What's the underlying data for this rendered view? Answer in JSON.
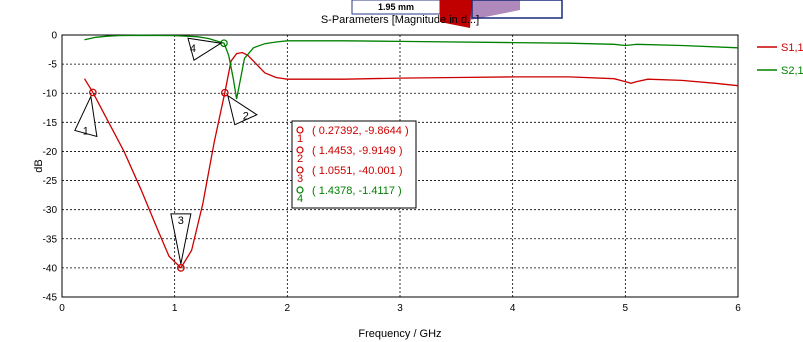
{
  "chart_data": {
    "type": "line",
    "title": "S-Parameters [Magnitude in d...]",
    "xlabel": "Frequency / GHz",
    "ylabel": "dB",
    "xlim": [
      0,
      6
    ],
    "ylim": [
      -45,
      0
    ],
    "xticks": [
      "0",
      "1",
      "2",
      "3",
      "4",
      "5",
      "6"
    ],
    "yticks": [
      "0",
      "-5",
      "-10",
      "-15",
      "-20",
      "-25",
      "-30",
      "-35",
      "-40",
      "-45"
    ],
    "grid": true,
    "legend_position": "right",
    "inset_label": "1.95 mm",
    "series": [
      {
        "name": "S1,1",
        "color": "#cc0000",
        "x": [
          0.2,
          0.27392,
          0.4,
          0.55,
          0.7,
          0.85,
          0.95,
          1.0551,
          1.15,
          1.25,
          1.35,
          1.4453,
          1.5,
          1.55,
          1.6,
          1.65,
          1.7,
          1.8,
          1.9,
          2.0,
          2.5,
          3.0,
          3.5,
          4.0,
          4.5,
          4.9,
          5.0,
          5.05,
          5.1,
          5.2,
          5.5,
          5.8,
          6.0
        ],
        "y": [
          -7.5,
          -9.8644,
          -14.5,
          -20,
          -26.5,
          -33.5,
          -38,
          -40.001,
          -37,
          -29,
          -18.5,
          -9.9149,
          -4.5,
          -3.2,
          -3.0,
          -3.5,
          -4.5,
          -6.5,
          -7.3,
          -7.6,
          -7.6,
          -7.4,
          -7.3,
          -7.2,
          -7.2,
          -7.5,
          -8.0,
          -8.3,
          -8.0,
          -7.6,
          -7.8,
          -8.3,
          -8.7
        ]
      },
      {
        "name": "S2,1",
        "color": "#008000",
        "x": [
          0.2,
          0.3,
          0.4,
          0.5,
          0.7,
          1.0,
          1.2,
          1.3,
          1.4378,
          1.48,
          1.52,
          1.55,
          1.58,
          1.62,
          1.7,
          1.8,
          1.9,
          2.0,
          2.5,
          3.0,
          4.0,
          4.5,
          4.9,
          5.0,
          5.1,
          5.5,
          6.0
        ],
        "y": [
          -0.8,
          -0.4,
          -0.2,
          -0.1,
          -0.05,
          -0.1,
          -0.3,
          -0.6,
          -1.4117,
          -3.5,
          -7.5,
          -11,
          -8,
          -4,
          -2.2,
          -1.5,
          -1.2,
          -1.0,
          -1.0,
          -1.1,
          -1.3,
          -1.4,
          -1.6,
          -1.8,
          -1.6,
          -1.8,
          -2.2
        ]
      }
    ],
    "markers": [
      {
        "id": "1",
        "series": 0,
        "x": 0.27392,
        "y": -9.8644,
        "label": "( 0.27392, -9.8644 )"
      },
      {
        "id": "2",
        "series": 0,
        "x": 1.4453,
        "y": -9.9149,
        "label": "( 1.4453, -9.9149 )"
      },
      {
        "id": "3",
        "series": 0,
        "x": 1.0551,
        "y": -40.001,
        "label": "( 1.0551, -40.001 )"
      },
      {
        "id": "4",
        "series": 1,
        "x": 1.4378,
        "y": -1.4117,
        "label": "( 1.4378, -1.4117 )"
      }
    ]
  }
}
